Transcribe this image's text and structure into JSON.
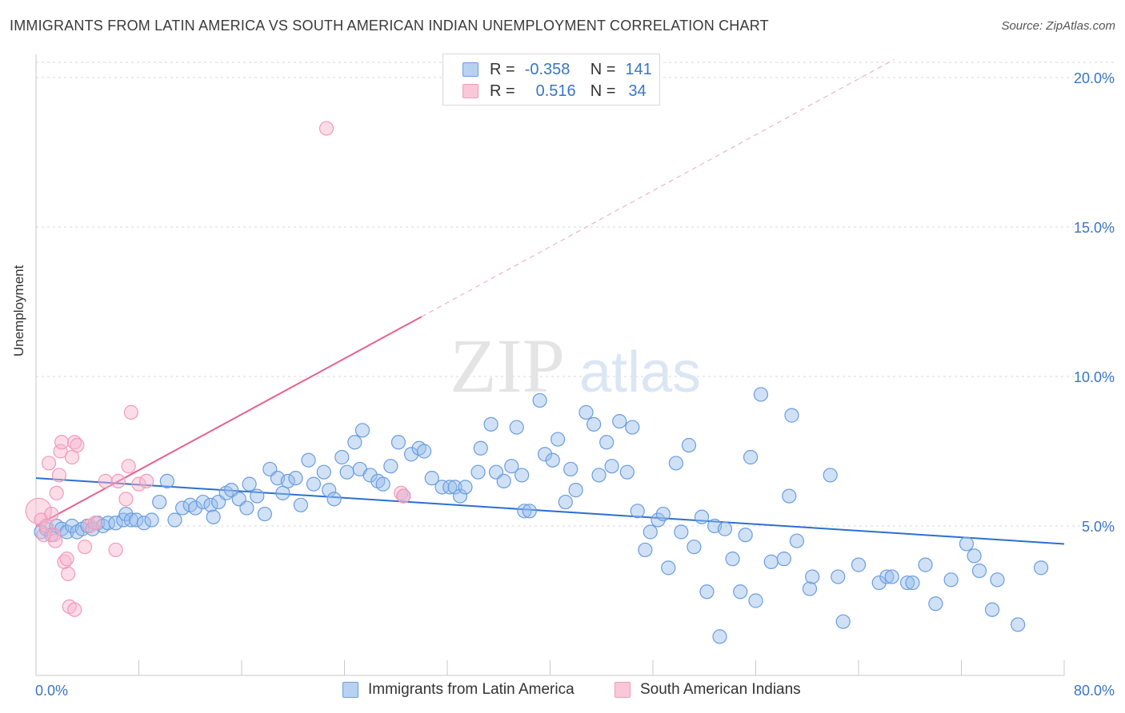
{
  "title": "IMMIGRANTS FROM LATIN AMERICA VS SOUTH AMERICAN INDIAN UNEMPLOYMENT CORRELATION CHART",
  "source": "Source: ZipAtlas.com",
  "watermark": {
    "zip": "ZIP",
    "atlas": "atlas"
  },
  "legend": {
    "series1": {
      "r_label": "R =",
      "r_value": "-0.358",
      "n_label": "N =",
      "n_value": "141"
    },
    "series2": {
      "r_label": "R =",
      "r_value": "0.516",
      "n_label": "N =",
      "n_value": "34"
    }
  },
  "chart_data": {
    "type": "scatter",
    "title": "IMMIGRANTS FROM LATIN AMERICA VS SOUTH AMERICAN INDIAN UNEMPLOYMENT CORRELATION CHART",
    "xlabel": "",
    "ylabel": "Unemployment",
    "xlim": [
      0,
      80
    ],
    "ylim": [
      0,
      20
    ],
    "x_tick_labels": [
      "0.0%",
      "80.0%"
    ],
    "y_ticks": [
      5,
      10,
      15,
      20
    ],
    "y_tick_labels": [
      "5.0%",
      "10.0%",
      "15.0%",
      "20.0%"
    ],
    "grid": true,
    "legend_position": "top-center",
    "colors": {
      "blue": "#6a9de0",
      "blue_line": "#2c6fcf",
      "pink": "#f29ab8",
      "pink_line": "#e5608f",
      "tick_label": "#3a75c4"
    },
    "series": [
      {
        "name": "Immigrants from Latin America",
        "color": "#6a9de0",
        "trend": {
          "x": [
            0,
            80
          ],
          "y": [
            6.6,
            4.4
          ]
        },
        "points": [
          [
            0.4,
            4.8
          ],
          [
            0.8,
            4.9
          ],
          [
            1.2,
            4.7
          ],
          [
            1.6,
            5.0
          ],
          [
            2.0,
            4.9
          ],
          [
            2.4,
            4.8
          ],
          [
            2.8,
            5.0
          ],
          [
            3.2,
            4.8
          ],
          [
            3.6,
            4.9
          ],
          [
            4.0,
            5.0
          ],
          [
            4.4,
            4.9
          ],
          [
            4.8,
            5.1
          ],
          [
            5.2,
            5.0
          ],
          [
            5.6,
            5.1
          ],
          [
            6.2,
            5.1
          ],
          [
            6.8,
            5.2
          ],
          [
            7.0,
            5.4
          ],
          [
            7.4,
            5.2
          ],
          [
            7.8,
            5.2
          ],
          [
            8.4,
            5.1
          ],
          [
            9.0,
            5.2
          ],
          [
            9.6,
            5.8
          ],
          [
            10.2,
            6.5
          ],
          [
            10.8,
            5.2
          ],
          [
            11.4,
            5.6
          ],
          [
            12.0,
            5.7
          ],
          [
            12.4,
            5.6
          ],
          [
            13.0,
            5.8
          ],
          [
            13.6,
            5.7
          ],
          [
            13.8,
            5.3
          ],
          [
            14.2,
            5.8
          ],
          [
            14.8,
            6.1
          ],
          [
            15.2,
            6.2
          ],
          [
            15.8,
            5.9
          ],
          [
            16.4,
            5.6
          ],
          [
            16.6,
            6.4
          ],
          [
            17.2,
            6.0
          ],
          [
            17.8,
            5.4
          ],
          [
            18.2,
            6.9
          ],
          [
            18.8,
            6.6
          ],
          [
            19.2,
            6.1
          ],
          [
            19.6,
            6.5
          ],
          [
            20.2,
            6.6
          ],
          [
            20.6,
            5.7
          ],
          [
            21.2,
            7.2
          ],
          [
            21.6,
            6.4
          ],
          [
            22.4,
            6.8
          ],
          [
            22.8,
            6.2
          ],
          [
            23.2,
            5.9
          ],
          [
            23.8,
            7.3
          ],
          [
            24.2,
            6.8
          ],
          [
            24.8,
            7.8
          ],
          [
            25.4,
            8.2
          ],
          [
            25.2,
            6.9
          ],
          [
            26.0,
            6.7
          ],
          [
            26.6,
            6.5
          ],
          [
            27.0,
            6.4
          ],
          [
            27.6,
            7.0
          ],
          [
            28.2,
            7.8
          ],
          [
            28.6,
            6.0
          ],
          [
            29.2,
            7.4
          ],
          [
            29.8,
            7.6
          ],
          [
            30.2,
            7.5
          ],
          [
            30.8,
            6.6
          ],
          [
            31.6,
            6.3
          ],
          [
            32.2,
            6.3
          ],
          [
            32.6,
            6.3
          ],
          [
            33.0,
            6.0
          ],
          [
            33.4,
            6.3
          ],
          [
            34.4,
            6.8
          ],
          [
            34.6,
            7.6
          ],
          [
            35.4,
            8.4
          ],
          [
            35.8,
            6.8
          ],
          [
            36.4,
            6.5
          ],
          [
            37.0,
            7.0
          ],
          [
            37.4,
            8.3
          ],
          [
            37.8,
            6.7
          ],
          [
            38.0,
            5.5
          ],
          [
            38.4,
            5.5
          ],
          [
            39.2,
            9.2
          ],
          [
            39.6,
            7.4
          ],
          [
            40.2,
            7.2
          ],
          [
            40.6,
            7.9
          ],
          [
            41.2,
            5.8
          ],
          [
            41.6,
            6.9
          ],
          [
            42.0,
            6.2
          ],
          [
            42.8,
            8.8
          ],
          [
            43.4,
            8.4
          ],
          [
            43.8,
            6.7
          ],
          [
            44.4,
            7.8
          ],
          [
            44.8,
            7.0
          ],
          [
            45.4,
            8.5
          ],
          [
            46.0,
            6.8
          ],
          [
            46.4,
            8.3
          ],
          [
            46.8,
            5.5
          ],
          [
            47.4,
            4.2
          ],
          [
            47.8,
            4.8
          ],
          [
            48.4,
            5.2
          ],
          [
            48.8,
            5.4
          ],
          [
            49.2,
            3.6
          ],
          [
            49.8,
            7.1
          ],
          [
            50.2,
            4.8
          ],
          [
            50.8,
            7.7
          ],
          [
            51.2,
            4.3
          ],
          [
            51.8,
            5.3
          ],
          [
            52.2,
            2.8
          ],
          [
            52.8,
            5.0
          ],
          [
            53.2,
            1.3
          ],
          [
            53.6,
            4.9
          ],
          [
            54.2,
            3.9
          ],
          [
            54.8,
            2.8
          ],
          [
            55.2,
            4.7
          ],
          [
            55.6,
            7.3
          ],
          [
            56.0,
            2.5
          ],
          [
            56.4,
            9.4
          ],
          [
            57.2,
            3.8
          ],
          [
            58.2,
            3.9
          ],
          [
            58.6,
            6.0
          ],
          [
            58.8,
            8.7
          ],
          [
            59.2,
            4.5
          ],
          [
            60.2,
            2.9
          ],
          [
            60.4,
            3.3
          ],
          [
            61.8,
            6.7
          ],
          [
            62.4,
            3.3
          ],
          [
            62.8,
            1.8
          ],
          [
            64.0,
            3.7
          ],
          [
            65.6,
            3.1
          ],
          [
            66.2,
            3.3
          ],
          [
            66.6,
            3.3
          ],
          [
            67.8,
            3.1
          ],
          [
            68.2,
            3.1
          ],
          [
            69.2,
            3.7
          ],
          [
            70.0,
            2.4
          ],
          [
            71.2,
            3.2
          ],
          [
            72.4,
            4.4
          ],
          [
            73.0,
            4.0
          ],
          [
            73.4,
            3.5
          ],
          [
            74.4,
            2.2
          ],
          [
            74.8,
            3.2
          ],
          [
            76.4,
            1.7
          ],
          [
            78.2,
            3.6
          ]
        ]
      },
      {
        "name": "South American Indians",
        "color": "#f29ab8",
        "trend": {
          "x": [
            0,
            30
          ],
          "y": [
            5.0,
            12.0
          ]
        },
        "trend_extension": {
          "x": [
            30,
            80
          ],
          "y": [
            12.0,
            23.7
          ]
        },
        "points": [
          [
            0.2,
            5.5
          ],
          [
            0.4,
            5.2
          ],
          [
            0.6,
            4.7
          ],
          [
            0.8,
            5.0
          ],
          [
            1.0,
            7.1
          ],
          [
            1.2,
            5.4
          ],
          [
            1.4,
            4.7
          ],
          [
            1.5,
            4.5
          ],
          [
            1.6,
            6.1
          ],
          [
            1.8,
            6.7
          ],
          [
            1.9,
            7.5
          ],
          [
            2.0,
            7.8
          ],
          [
            2.2,
            3.8
          ],
          [
            2.4,
            3.9
          ],
          [
            2.5,
            3.4
          ],
          [
            2.6,
            2.3
          ],
          [
            2.8,
            7.3
          ],
          [
            3.0,
            7.8
          ],
          [
            3.0,
            2.2
          ],
          [
            3.2,
            7.7
          ],
          [
            3.8,
            4.3
          ],
          [
            4.2,
            5.0
          ],
          [
            4.6,
            5.1
          ],
          [
            5.4,
            6.5
          ],
          [
            6.2,
            4.2
          ],
          [
            6.4,
            6.5
          ],
          [
            7.0,
            5.9
          ],
          [
            7.2,
            7.0
          ],
          [
            7.4,
            8.8
          ],
          [
            8.0,
            6.4
          ],
          [
            8.6,
            6.5
          ],
          [
            22.6,
            18.3
          ],
          [
            28.4,
            6.1
          ],
          [
            28.6,
            6.0
          ]
        ]
      }
    ]
  }
}
